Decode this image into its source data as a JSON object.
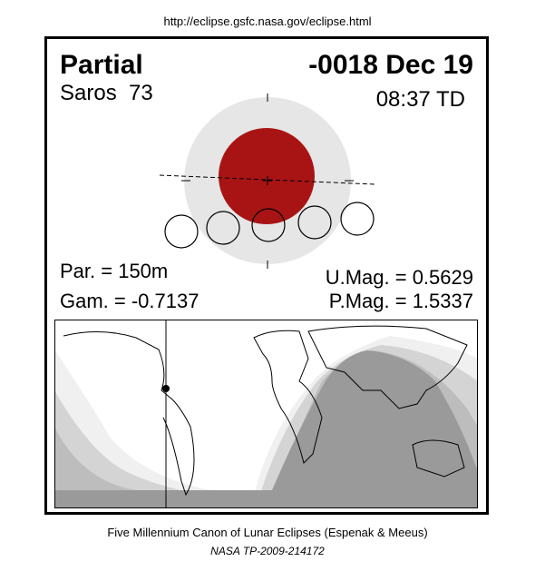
{
  "header": {
    "url": "http://eclipse.gsfc.nasa.gov/eclipse.html"
  },
  "eclipse": {
    "type": "Partial",
    "date": "-0018 Dec 19",
    "saros": "Saros  73",
    "time": "08:37 TD",
    "parameters": {
      "par": "Par. = 150m",
      "gam": "Gam. = -0.7137",
      "umag": "U.Mag. = 0.5629",
      "pmag": "P.Mag. = 1.5337"
    }
  },
  "footer": {
    "canon": "Five Millennium Canon of Lunar Eclipses (Espenak & Meeus)",
    "reference": "NASA TP-2009-214172"
  }
}
